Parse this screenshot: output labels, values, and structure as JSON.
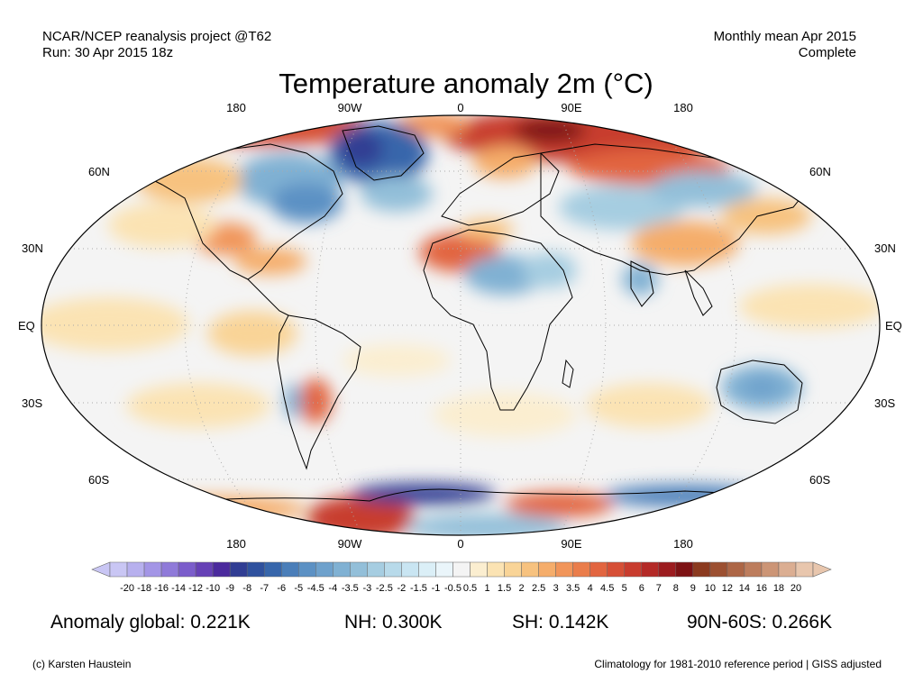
{
  "header": {
    "project": "NCAR/NCEP reanalysis project @T62",
    "run": "Run: 30 Apr 2015 18z",
    "period": "Monthly mean Apr 2015",
    "status": "Complete"
  },
  "title": "Temperature anomaly 2m (°C)",
  "axes": {
    "lon_top": [
      "180",
      "90W",
      "0",
      "90E",
      "180"
    ],
    "lon_bottom": [
      "180",
      "90W",
      "0",
      "90E",
      "180"
    ],
    "lat_left": [
      "60N",
      "30N",
      "EQ",
      "30S",
      "60S"
    ],
    "lat_right": [
      "60N",
      "30N",
      "EQ",
      "30S",
      "60S"
    ]
  },
  "colorbar": {
    "ticks": [
      "-20",
      "-18",
      "-16",
      "-14",
      "-12",
      "-10",
      "-9",
      "-8",
      "-7",
      "-6",
      "-5",
      "-4.5",
      "-4",
      "-3.5",
      "-3",
      "-2.5",
      "-2",
      "-1.5",
      "-1",
      "-0.5",
      "0.5",
      "1",
      "1.5",
      "2",
      "2.5",
      "3",
      "3.5",
      "4",
      "4.5",
      "5",
      "6",
      "7",
      "8",
      "9",
      "10",
      "12",
      "14",
      "16",
      "18",
      "20"
    ],
    "colors": [
      "#c9c6f4",
      "#b7b0ee",
      "#a395e6",
      "#8f7ad9",
      "#7b5dcb",
      "#6641b6",
      "#4b2a9d",
      "#303d93",
      "#2f519e",
      "#3766ab",
      "#4a7eb9",
      "#5c91c4",
      "#6ea1cc",
      "#80b1d3",
      "#93bfd9",
      "#a6cde1",
      "#b8daea",
      "#c9e5f2",
      "#dbeff7",
      "#eaf5fa",
      "#f4f4f4",
      "#fbeed0",
      "#fbe3b3",
      "#f9d497",
      "#f7c27f",
      "#f5ad6b",
      "#f1955a",
      "#ea7d4b",
      "#e26540",
      "#d64f36",
      "#c83c2e",
      "#b42a27",
      "#9c1c1f",
      "#7d1214",
      "#8b3a1f",
      "#9c5031",
      "#ad6646",
      "#bd7d5d",
      "#cc9576",
      "#dbae92",
      "#e8c6ad"
    ]
  },
  "stats": {
    "global": "Anomaly global: 0.221K",
    "nh": "NH: 0.300K",
    "sh": "SH: 0.142K",
    "arctic": "90N-60S: 0.266K"
  },
  "footer": {
    "credit": "(c) Karsten Haustein",
    "note": "Climatology for 1981-2010 reference period | GISS adjusted"
  }
}
